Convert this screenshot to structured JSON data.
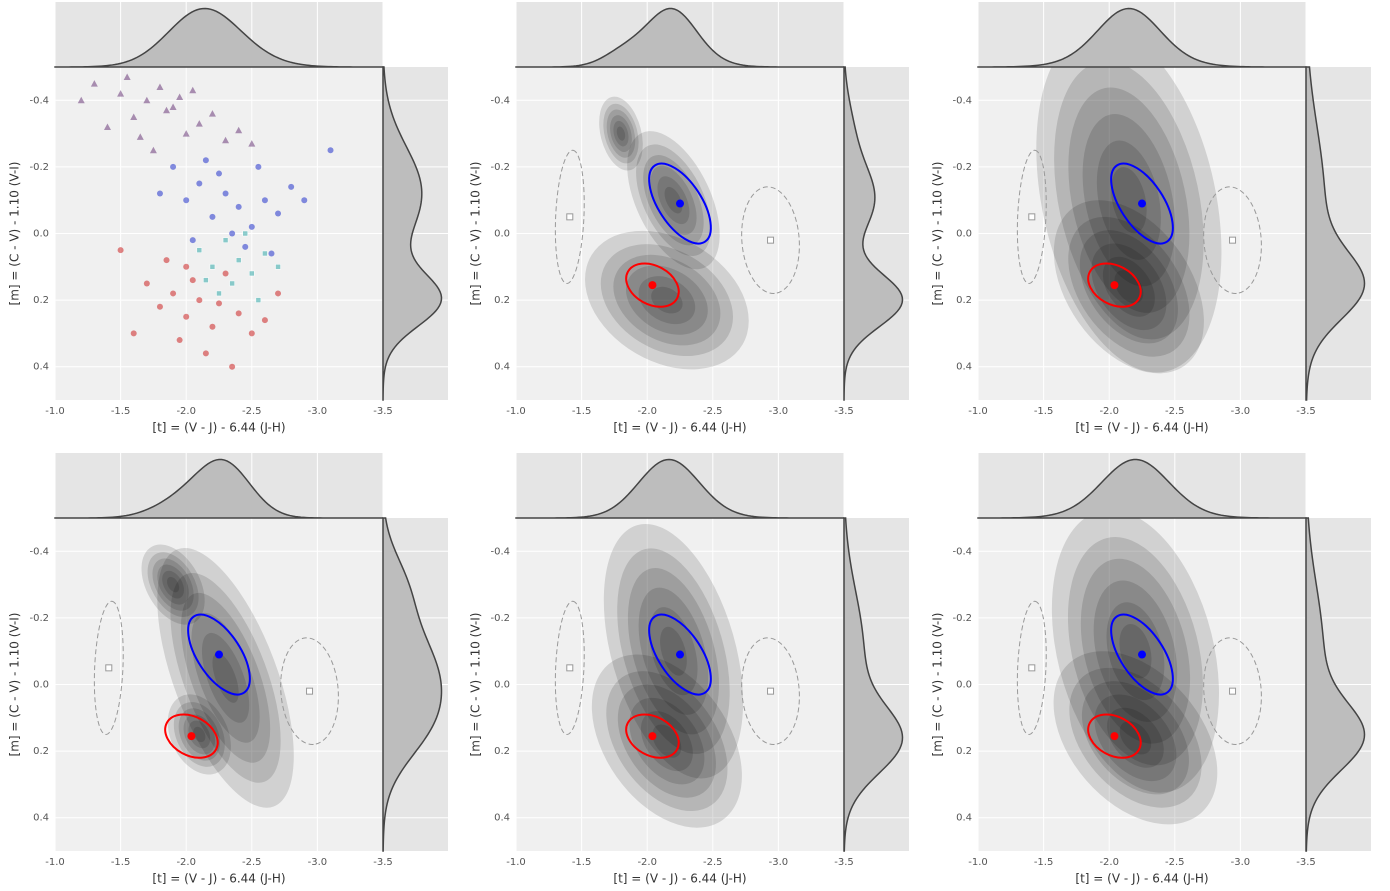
{
  "chart_data": [
    {
      "type": "scatter",
      "xlabel": "[t] = (V - J) - 6.44 (J-H)",
      "ylabel": "[m] = (C - V) - 1.10 (V-I)",
      "xlim": [
        -1,
        -3.5
      ],
      "ylim": [
        0.5,
        -0.5
      ],
      "xticks": [
        {
          "value": -1,
          "label": "-1.0"
        },
        -1.5,
        {
          "value": -2,
          "label": "-2.0"
        },
        -2.5,
        {
          "value": -3,
          "label": "-3.0"
        },
        -3.5
      ],
      "yticks": [
        -0.4,
        -0.2,
        {
          "value": 0,
          "label": "0.0"
        },
        0.2,
        0.4
      ],
      "components": [
        {
          "x": -2.2,
          "y": -0.12,
          "sx": 0.3,
          "sy": 0.14,
          "rho": -0.5,
          "w": 0.55
        },
        {
          "x": -2.1,
          "y": 0.2,
          "sx": 0.25,
          "sy": 0.08,
          "rho": -0.2,
          "w": 0.45
        }
      ],
      "series": [
        {
          "color": "#6b3a7a",
          "marker": "^",
          "x": [
            -1.3,
            -1.5,
            -1.7,
            -1.9,
            -2.1,
            -1.6,
            -1.8,
            -2.0,
            -2.3,
            -1.4,
            -1.75,
            -1.95,
            -2.2,
            -2.5,
            -1.2,
            -1.65,
            -1.85,
            -2.05,
            -2.4,
            -1.55
          ],
          "y": [
            -0.45,
            -0.42,
            -0.4,
            -0.38,
            -0.33,
            -0.35,
            -0.44,
            -0.3,
            -0.28,
            -0.32,
            -0.25,
            -0.41,
            -0.36,
            -0.27,
            -0.4,
            -0.29,
            -0.37,
            -0.43,
            -0.31,
            -0.47
          ]
        },
        {
          "color": "#2233cc",
          "marker": "o",
          "x": [
            -1.9,
            -2.0,
            -2.1,
            -2.2,
            -2.3,
            -2.4,
            -2.5,
            -2.6,
            -2.7,
            -2.8,
            -2.15,
            -2.25,
            -2.35,
            -2.45,
            -1.8,
            -2.05,
            -2.55,
            -2.9,
            -3.1,
            -2.65
          ],
          "y": [
            -0.2,
            -0.1,
            -0.15,
            -0.05,
            -0.12,
            -0.08,
            -0.02,
            -0.1,
            -0.06,
            -0.14,
            -0.22,
            -0.18,
            0,
            0.04,
            -0.12,
            0.02,
            -0.2,
            -0.1,
            -0.25,
            0.06
          ]
        },
        {
          "color": "#cc2222",
          "marker": "o",
          "x": [
            -1.7,
            -1.8,
            -1.9,
            -2.0,
            -2.1,
            -2.2,
            -2.3,
            -2.4,
            -2.5,
            -1.85,
            -1.95,
            -2.05,
            -2.15,
            -2.25,
            -2.6,
            -1.6,
            -2.7,
            -1.5,
            -2.35,
            -2.0
          ],
          "y": [
            0.15,
            0.22,
            0.18,
            0.25,
            0.2,
            0.28,
            0.12,
            0.24,
            0.3,
            0.08,
            0.32,
            0.14,
            0.36,
            0.21,
            0.26,
            0.3,
            0.18,
            0.05,
            0.4,
            0.1
          ]
        },
        {
          "color": "#33aaaa",
          "marker": "s",
          "x": [
            -2.1,
            -2.2,
            -2.3,
            -2.4,
            -2.5,
            -2.6,
            -2.35,
            -2.45,
            -2.25,
            -2.55,
            -2.7,
            -2.15
          ],
          "y": [
            0.05,
            0.1,
            0.02,
            0.08,
            0.12,
            0.06,
            0.15,
            0,
            0.18,
            0.2,
            0.1,
            0.14
          ]
        }
      ]
    },
    {
      "type": "kde",
      "xlabel": "[t] = (V - J) - 6.44 (J-H)",
      "ylabel": "[m] = (C - V) - 1.10 (V-I)",
      "xlim": [
        -1,
        -3.5
      ],
      "ylim": [
        0.5,
        -0.5
      ],
      "xticks": [
        {
          "value": -1,
          "label": "-1.0"
        },
        -1.5,
        {
          "value": -2,
          "label": "-2.0"
        },
        -2.5,
        {
          "value": -3,
          "label": "-3.0"
        },
        -3.5
      ],
      "yticks": [
        -0.4,
        -0.2,
        {
          "value": 0,
          "label": "0.0"
        },
        0.2,
        0.4
      ],
      "components": [
        {
          "x": -2.2,
          "y": -0.1,
          "sx": 0.17,
          "sy": 0.1,
          "rho": -0.5,
          "w": 0.35
        },
        {
          "x": -1.8,
          "y": -0.3,
          "sx": 0.15,
          "sy": 0.1,
          "rho": -0.3,
          "w": 0.1
        },
        {
          "x": -2.15,
          "y": 0.2,
          "sx": 0.24,
          "sy": 0.08,
          "rho": -0.3,
          "w": 0.55
        }
      ],
      "markers": [
        {
          "x": -2.25,
          "y": -0.09,
          "sx": 0.235,
          "sy": 0.12,
          "rho": -0.6,
          "color": "#0000ff",
          "symbol": "o",
          "dashed": false
        },
        {
          "x": -2.04,
          "y": 0.155,
          "sx": 0.2,
          "sy": 0.065,
          "rho": -0.3,
          "color": "#ff0000",
          "symbol": "o",
          "dashed": false
        },
        {
          "x": -1.41,
          "y": -0.05,
          "sx": 0.11,
          "sy": 0.2,
          "rho": 0.2,
          "color": "#999999",
          "symbol": "s",
          "dashed": true
        },
        {
          "x": -2.94,
          "y": 0.02,
          "sx": 0.22,
          "sy": 0.16,
          "rho": -0.1,
          "color": "#999999",
          "symbol": "s",
          "dashed": true
        }
      ]
    },
    {
      "type": "kde",
      "xlabel": "[t] = (V - J) - 6.44 (J-H)",
      "ylabel": "[m] = (C - V) - 1.10 (V-I)",
      "xlim": [
        -1,
        -3.5
      ],
      "ylim": [
        0.5,
        -0.5
      ],
      "xticks": [
        {
          "value": -1,
          "label": "-1.0"
        },
        -1.5,
        {
          "value": -2,
          "label": "-2.0"
        },
        -2.5,
        {
          "value": -3,
          "label": "-3.0"
        },
        -3.5
      ],
      "yticks": [
        -0.4,
        -0.2,
        {
          "value": 0,
          "label": "0.0"
        },
        0.2,
        0.4
      ],
      "components": [
        {
          "x": -2.15,
          "y": -0.1,
          "sx": 0.3,
          "sy": 0.22,
          "rho": -0.3,
          "w": 0.45
        },
        {
          "x": -2.15,
          "y": 0.16,
          "sx": 0.22,
          "sy": 0.1,
          "rho": -0.4,
          "w": 0.55
        }
      ],
      "markers": [
        {
          "x": -2.25,
          "y": -0.09,
          "sx": 0.235,
          "sy": 0.12,
          "rho": -0.6,
          "color": "#0000ff",
          "symbol": "o",
          "dashed": false
        },
        {
          "x": -2.04,
          "y": 0.155,
          "sx": 0.2,
          "sy": 0.065,
          "rho": -0.3,
          "color": "#ff0000",
          "symbol": "o",
          "dashed": false
        },
        {
          "x": -1.41,
          "y": -0.05,
          "sx": 0.11,
          "sy": 0.2,
          "rho": 0.2,
          "color": "#999999",
          "symbol": "s",
          "dashed": true
        },
        {
          "x": -2.94,
          "y": 0.02,
          "sx": 0.22,
          "sy": 0.16,
          "rho": -0.1,
          "color": "#999999",
          "symbol": "s",
          "dashed": true
        }
      ]
    },
    {
      "type": "kde",
      "xlabel": "[t] = (V - J) - 6.44 (J-H)",
      "ylabel": "[m] = (C - V) - 1.10 (V-I)",
      "xlim": [
        -1,
        -3.5
      ],
      "ylim": [
        0.5,
        -0.5
      ],
      "xticks": [
        {
          "value": -1,
          "label": "-1.0"
        },
        -1.5,
        {
          "value": -2,
          "label": "-2.0"
        },
        -2.5,
        {
          "value": -3,
          "label": "-3.0"
        },
        -3.5
      ],
      "yticks": [
        -0.4,
        -0.2,
        {
          "value": 0,
          "label": "0.0"
        },
        0.2,
        0.4
      ],
      "components": [
        {
          "x": -2.3,
          "y": -0.02,
          "sx": 0.2,
          "sy": 0.15,
          "rho": -0.6,
          "w": 0.7
        },
        {
          "x": -1.9,
          "y": -0.3,
          "sx": 0.2,
          "sy": 0.1,
          "rho": -0.4,
          "w": 0.15
        },
        {
          "x": -2.1,
          "y": 0.15,
          "sx": 0.2,
          "sy": 0.1,
          "rho": -0.3,
          "w": 0.15
        }
      ],
      "markers": [
        {
          "x": -2.25,
          "y": -0.09,
          "sx": 0.235,
          "sy": 0.12,
          "rho": -0.6,
          "color": "#0000ff",
          "symbol": "o",
          "dashed": false
        },
        {
          "x": -2.04,
          "y": 0.155,
          "sx": 0.2,
          "sy": 0.065,
          "rho": -0.3,
          "color": "#ff0000",
          "symbol": "o",
          "dashed": false
        },
        {
          "x": -1.41,
          "y": -0.05,
          "sx": 0.11,
          "sy": 0.2,
          "rho": 0.2,
          "color": "#999999",
          "symbol": "s",
          "dashed": true
        },
        {
          "x": -2.94,
          "y": 0.02,
          "sx": 0.22,
          "sy": 0.16,
          "rho": -0.1,
          "color": "#999999",
          "symbol": "s",
          "dashed": true
        }
      ]
    },
    {
      "type": "kde",
      "xlabel": "[t] = (V - J) - 6.44 (J-H)",
      "ylabel": "[m] = (C - V) - 1.10 (V-I)",
      "xlim": [
        -1,
        -3.5
      ],
      "ylim": [
        0.5,
        -0.5
      ],
      "xticks": [
        {
          "value": -1,
          "label": "-1.0"
        },
        -1.5,
        {
          "value": -2,
          "label": "-2.0"
        },
        -2.5,
        {
          "value": -3,
          "label": "-3.0"
        },
        -3.5
      ],
      "yticks": [
        -0.4,
        -0.2,
        {
          "value": 0,
          "label": "0.0"
        },
        0.2,
        0.4
      ],
      "components": [
        {
          "x": -2.2,
          "y": -0.1,
          "sx": 0.25,
          "sy": 0.18,
          "rho": -0.4,
          "w": 0.4
        },
        {
          "x": -2.15,
          "y": 0.17,
          "sx": 0.22,
          "sy": 0.1,
          "rho": -0.4,
          "w": 0.6
        }
      ],
      "markers": [
        {
          "x": -2.25,
          "y": -0.09,
          "sx": 0.235,
          "sy": 0.12,
          "rho": -0.6,
          "color": "#0000ff",
          "symbol": "o",
          "dashed": false
        },
        {
          "x": -2.04,
          "y": 0.155,
          "sx": 0.2,
          "sy": 0.065,
          "rho": -0.3,
          "color": "#ff0000",
          "symbol": "o",
          "dashed": false
        },
        {
          "x": -1.41,
          "y": -0.05,
          "sx": 0.11,
          "sy": 0.2,
          "rho": 0.2,
          "color": "#999999",
          "symbol": "s",
          "dashed": true
        },
        {
          "x": -2.94,
          "y": 0.02,
          "sx": 0.22,
          "sy": 0.16,
          "rho": -0.1,
          "color": "#999999",
          "symbol": "s",
          "dashed": true
        }
      ]
    },
    {
      "type": "kde",
      "xlabel": "[t] = (V - J) - 6.44 (J-H)",
      "ylabel": "[m] = (C - V) - 1.10 (V-I)",
      "xlim": [
        -1,
        -3.5
      ],
      "ylim": [
        0.5,
        -0.5
      ],
      "xticks": [
        {
          "value": -1,
          "label": "-1.0"
        },
        -1.5,
        {
          "value": -2,
          "label": "-2.0"
        },
        -2.5,
        {
          "value": -3,
          "label": "-3.0"
        },
        -3.5
      ],
      "yticks": [
        -0.4,
        -0.2,
        {
          "value": 0,
          "label": "0.0"
        },
        0.2,
        0.4
      ],
      "components": [
        {
          "x": -2.2,
          "y": -0.1,
          "sx": 0.3,
          "sy": 0.2,
          "rho": -0.3,
          "w": 0.4
        },
        {
          "x": -2.2,
          "y": 0.16,
          "sx": 0.24,
          "sy": 0.1,
          "rho": -0.4,
          "w": 0.6
        }
      ],
      "markers": [
        {
          "x": -2.25,
          "y": -0.09,
          "sx": 0.235,
          "sy": 0.12,
          "rho": -0.6,
          "color": "#0000ff",
          "symbol": "o",
          "dashed": false
        },
        {
          "x": -2.04,
          "y": 0.155,
          "sx": 0.2,
          "sy": 0.065,
          "rho": -0.3,
          "color": "#ff0000",
          "symbol": "o",
          "dashed": false
        },
        {
          "x": -1.41,
          "y": -0.05,
          "sx": 0.11,
          "sy": 0.2,
          "rho": 0.2,
          "color": "#999999",
          "symbol": "s",
          "dashed": true
        },
        {
          "x": -2.94,
          "y": 0.02,
          "sx": 0.22,
          "sy": 0.16,
          "rho": -0.1,
          "color": "#999999",
          "symbol": "s",
          "dashed": true
        }
      ]
    }
  ]
}
